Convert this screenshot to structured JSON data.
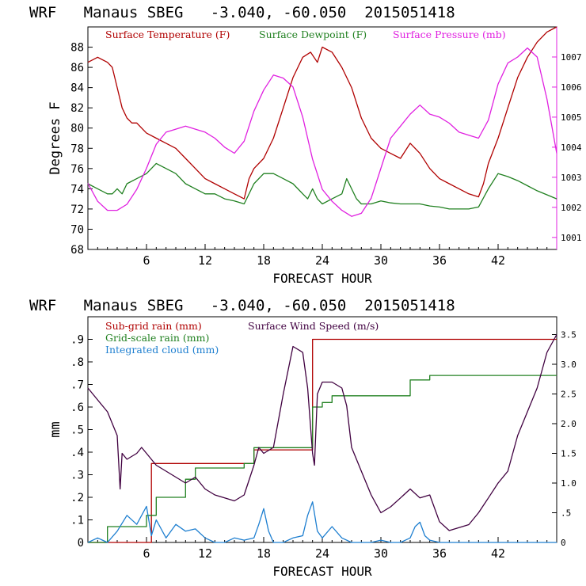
{
  "page_title_top": "WRF   Manaus SBEG   -3.040, -60.050  2015051418",
  "page_title_bottom": "WRF   Manaus SBEG   -3.040, -60.050  2015051418",
  "colors": {
    "temperature": "#b00000",
    "dewpoint": "#208020",
    "pressure": "#e020e0",
    "wind": "#400040",
    "subgrid_rain": "#b00000",
    "grid_rain": "#208020",
    "cloud": "#1e7fd0",
    "axis": "#000000"
  },
  "chart_data": [
    {
      "type": "line",
      "legend_placement": "top",
      "xlabel": "FORECAST HOUR",
      "ylabel": "Degrees F",
      "xlim": [
        0,
        48
      ],
      "ylim": [
        68,
        90
      ],
      "y2lim": [
        1000.6,
        1008.0
      ],
      "x_ticks": [
        6,
        12,
        18,
        24,
        30,
        36,
        42
      ],
      "y_ticks": [
        68,
        70,
        72,
        74,
        76,
        78,
        80,
        82,
        84,
        86,
        88
      ],
      "y2_ticks": [
        1001,
        1002,
        1003,
        1004,
        1005,
        1006,
        1007
      ],
      "series": [
        {
          "name": "Surface Temperature (F)",
          "axis": "left",
          "x": [
            0,
            1,
            2,
            2.5,
            3,
            3.5,
            4,
            4.5,
            5,
            5.5,
            6,
            7,
            8,
            9,
            10,
            11,
            12,
            13,
            14,
            15,
            16,
            16.5,
            17,
            18,
            19,
            20,
            21,
            22,
            22.8,
            23.5,
            24,
            25,
            26,
            27,
            28,
            29,
            30,
            31,
            32,
            33,
            33.5,
            34,
            35,
            36,
            37,
            38,
            39,
            40,
            40.5,
            41,
            42,
            43,
            44,
            45,
            46,
            47,
            48
          ],
          "values": [
            86.5,
            87,
            86.5,
            86,
            84,
            82,
            81,
            80.5,
            80.5,
            80,
            79.5,
            79,
            78.5,
            78,
            77,
            76,
            75,
            74.5,
            74,
            73.5,
            73,
            75,
            76,
            77,
            79,
            82,
            85,
            87,
            87.5,
            86.5,
            88,
            87.5,
            86,
            84,
            81,
            79,
            78,
            77.5,
            77,
            78.5,
            78,
            77.5,
            76,
            75,
            74.5,
            74,
            73.5,
            73.2,
            74.5,
            76.5,
            79,
            82,
            85,
            87,
            88.5,
            89.5,
            90
          ]
        },
        {
          "name": "Surface Dewpoint (F)",
          "axis": "left",
          "x": [
            0,
            1,
            2,
            2.5,
            3,
            3.5,
            4,
            5,
            6,
            7,
            8,
            9,
            10,
            11,
            12,
            13,
            14,
            15,
            16,
            17,
            18,
            19,
            20,
            21,
            22,
            22.5,
            23,
            23.5,
            24,
            25,
            26,
            26.5,
            27,
            27.5,
            28,
            29,
            30,
            31,
            32,
            33,
            34,
            35,
            36,
            37,
            38,
            39,
            40,
            41,
            42,
            43,
            44,
            45,
            46,
            47,
            48
          ],
          "values": [
            74.5,
            74,
            73.5,
            73.5,
            74,
            73.5,
            74.5,
            75,
            75.5,
            76.5,
            76,
            75.5,
            74.5,
            74,
            73.5,
            73.5,
            73,
            72.8,
            72.5,
            74.5,
            75.5,
            75.5,
            75,
            74.5,
            73.5,
            73,
            74,
            73,
            72.5,
            73,
            73.5,
            75,
            74,
            73,
            72.5,
            72.5,
            72.8,
            72.6,
            72.5,
            72.5,
            72.5,
            72.3,
            72.2,
            72,
            72,
            72,
            72.2,
            74,
            75.5,
            75.2,
            74.8,
            74.3,
            73.8,
            73.4,
            73
          ]
        },
        {
          "name": "Surface Pressure (mb)",
          "axis": "right",
          "x": [
            0,
            1,
            2,
            3,
            4,
            5,
            6,
            7,
            8,
            9,
            10,
            11,
            12,
            13,
            14,
            15,
            16,
            17,
            18,
            19,
            20,
            21,
            22,
            23,
            24,
            25,
            26,
            27,
            28,
            29,
            30,
            31,
            32,
            33,
            34,
            35,
            36,
            37,
            38,
            39,
            40,
            41,
            42,
            43,
            44,
            45,
            46,
            47,
            48
          ],
          "values": [
            1002.8,
            1002.2,
            1001.9,
            1001.9,
            1002.1,
            1002.6,
            1003.3,
            1004.1,
            1004.5,
            1004.6,
            1004.7,
            1004.6,
            1004.5,
            1004.3,
            1004.0,
            1003.8,
            1004.2,
            1005.2,
            1005.9,
            1006.4,
            1006.3,
            1006.0,
            1005.0,
            1003.6,
            1002.6,
            1002.2,
            1001.9,
            1001.7,
            1001.8,
            1002.3,
            1003.3,
            1004.3,
            1004.7,
            1005.1,
            1005.4,
            1005.1,
            1005.0,
            1004.8,
            1004.5,
            1004.4,
            1004.3,
            1004.9,
            1006.1,
            1006.8,
            1007.0,
            1007.3,
            1007.0,
            1005.6,
            1003.8
          ]
        }
      ]
    },
    {
      "type": "line",
      "legend_placement": "top-left",
      "xlabel": "FORECAST HOUR",
      "ylabel": "mm",
      "xlim": [
        0,
        48
      ],
      "ylim": [
        0,
        1.0
      ],
      "y2lim": [
        0,
        3.8
      ],
      "x_ticks": [
        6,
        12,
        18,
        24,
        30,
        36,
        42
      ],
      "y_ticks": [
        0,
        0.1,
        0.2,
        0.3,
        0.4,
        0.5,
        0.6,
        0.7,
        0.8,
        0.9
      ],
      "y_tick_labels": [
        "0",
        ".1",
        ".2",
        ".3",
        ".4",
        ".5",
        ".6",
        ".7",
        ".8",
        ".9"
      ],
      "y2_ticks": [
        0,
        0.5,
        1.0,
        1.5,
        2.0,
        2.5,
        3.0,
        3.5
      ],
      "y2_tick_labels": [
        "0",
        ".5",
        "1.0",
        "1.5",
        "2.0",
        "2.5",
        "3.0",
        "3.5"
      ],
      "series": [
        {
          "name": "Sub-grid rain (mm)",
          "axis": "left",
          "step": true,
          "x": [
            0,
            6.5,
            6.5,
            17,
            17,
            23,
            23,
            48
          ],
          "values": [
            0,
            0,
            0.35,
            0.35,
            0.41,
            0.41,
            0.9,
            0.9
          ]
        },
        {
          "name": "Grid-scale rain (mm)",
          "axis": "left",
          "step": true,
          "x": [
            0,
            2,
            2,
            6,
            6,
            7,
            7,
            10,
            10,
            11,
            11,
            16,
            16,
            17,
            17,
            23,
            23,
            24,
            24,
            25,
            25,
            33,
            33,
            35,
            35,
            48
          ],
          "values": [
            0,
            0,
            0.07,
            0.07,
            0.12,
            0.12,
            0.2,
            0.2,
            0.28,
            0.28,
            0.33,
            0.33,
            0.35,
            0.35,
            0.42,
            0.42,
            0.6,
            0.6,
            0.62,
            0.62,
            0.65,
            0.65,
            0.72,
            0.72,
            0.74,
            0.74
          ]
        },
        {
          "name": "Integrated cloud (mm)",
          "axis": "left",
          "x": [
            0,
            1,
            2,
            3,
            4,
            5,
            6,
            6.5,
            7,
            8,
            9,
            10,
            11,
            12,
            13,
            14,
            15,
            16,
            17,
            17.5,
            18,
            18.5,
            19,
            20,
            21,
            22,
            22.5,
            23,
            23.5,
            24,
            25,
            26,
            27,
            28,
            29,
            30,
            31,
            32,
            33,
            33.5,
            34,
            34.5,
            35,
            36,
            37,
            38,
            39,
            40,
            41,
            42,
            43,
            44,
            45,
            46,
            47,
            48
          ],
          "values": [
            0,
            0.02,
            0,
            0.05,
            0.12,
            0.08,
            0.16,
            0.03,
            0.1,
            0.02,
            0.08,
            0.05,
            0.06,
            0.02,
            0,
            0,
            0.02,
            0.01,
            0.02,
            0.08,
            0.15,
            0.05,
            0,
            0,
            0.02,
            0.03,
            0.12,
            0.18,
            0.05,
            0.02,
            0.07,
            0.02,
            0,
            0,
            0,
            0.01,
            0,
            0,
            0.02,
            0.07,
            0.09,
            0.03,
            0.01,
            0,
            0,
            0,
            0,
            0,
            0,
            0,
            0,
            0,
            0,
            0,
            0,
            0
          ]
        },
        {
          "name": "Surface Wind Speed (m/s)",
          "axis": "right",
          "x": [
            0,
            1,
            2,
            3,
            3.3,
            3.5,
            4,
            5,
            5.5,
            6,
            7,
            8,
            9,
            10,
            11,
            12,
            13,
            14,
            15,
            16,
            17,
            17.5,
            18,
            19,
            20,
            21,
            22,
            22.5,
            23,
            23.2,
            23.5,
            24,
            25,
            26,
            26.5,
            27,
            28,
            29,
            30,
            31,
            32,
            33,
            34,
            35,
            36,
            37,
            38,
            39,
            40,
            41,
            42,
            43,
            44,
            45,
            46,
            47,
            48
          ],
          "values": [
            2.6,
            2.4,
            2.2,
            1.8,
            0.9,
            1.5,
            1.4,
            1.5,
            1.6,
            1.5,
            1.3,
            1.2,
            1.1,
            1.0,
            1.1,
            0.9,
            0.8,
            0.75,
            0.7,
            0.8,
            1.3,
            1.6,
            1.5,
            1.6,
            2.5,
            3.3,
            3.2,
            2.6,
            1.5,
            1.3,
            2.5,
            2.7,
            2.7,
            2.6,
            2.3,
            1.6,
            1.2,
            0.8,
            0.5,
            0.6,
            0.75,
            0.9,
            0.75,
            0.8,
            0.35,
            0.2,
            0.25,
            0.3,
            0.5,
            0.75,
            1.0,
            1.2,
            1.8,
            2.2,
            2.6,
            3.2,
            3.5
          ]
        }
      ]
    }
  ]
}
